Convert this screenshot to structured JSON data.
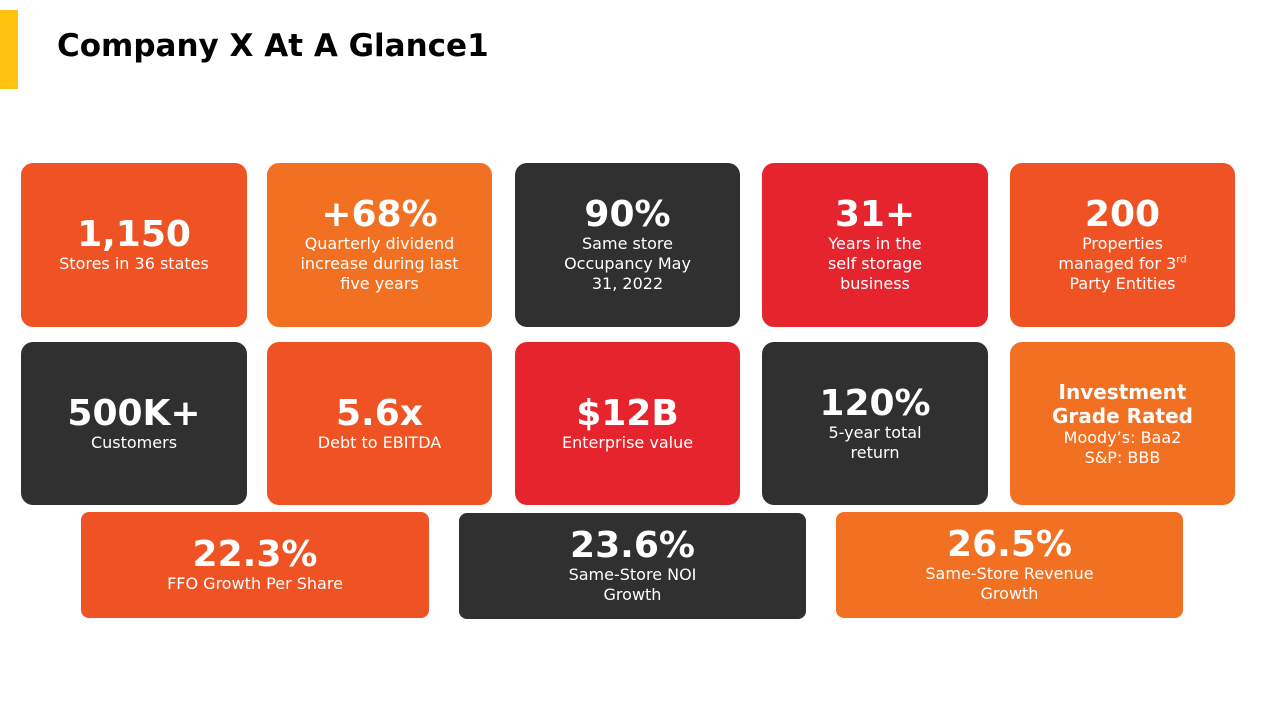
{
  "slide": {
    "title": "Company X At A Glance1",
    "accent_color": "#FFC20E"
  },
  "colors": {
    "orange": "#F05323",
    "amber": "#F27022",
    "dark": "#303030",
    "red": "#E5242E"
  },
  "tiles": [
    {
      "value": "1,150",
      "lines": [
        "Stores in 36 states"
      ],
      "color": "orange"
    },
    {
      "value": "+68%",
      "lines": [
        "Quarterly dividend",
        "increase during last",
        "five years"
      ],
      "color": "amber"
    },
    {
      "value": "90%",
      "lines": [
        "Same store",
        "Occupancy May",
        "31, 2022"
      ],
      "color": "dark"
    },
    {
      "value": "31+",
      "lines": [
        "Years in the",
        "self storage",
        "business"
      ],
      "color": "red"
    },
    {
      "value": "200",
      "lines": [
        "Properties",
        "managed for 3",
        "Party Entities"
      ],
      "sup": "rd",
      "color": "orange"
    },
    {
      "value": "500K+",
      "lines": [
        "Customers"
      ],
      "color": "dark"
    },
    {
      "value": "5.6x",
      "lines": [
        "Debt to EBITDA"
      ],
      "color": "orange"
    },
    {
      "value": "$12B",
      "lines": [
        "Enterprise value"
      ],
      "color": "red"
    },
    {
      "value": "120%",
      "lines": [
        "5-year total",
        "return"
      ],
      "color": "dark"
    },
    {
      "value_lines": [
        "Investment",
        "Grade Rated"
      ],
      "lines": [
        "Moody’s: Baa2",
        "S&P: BBB"
      ],
      "color": "amber"
    },
    {
      "value": "22.3%",
      "lines": [
        "FFO Growth Per Share"
      ],
      "color": "orange"
    },
    {
      "value": "23.6%",
      "lines": [
        "Same-Store NOI",
        "Growth"
      ],
      "color": "dark"
    },
    {
      "value": "26.5%",
      "lines": [
        "Same-Store Revenue",
        "Growth"
      ],
      "color": "amber"
    }
  ]
}
